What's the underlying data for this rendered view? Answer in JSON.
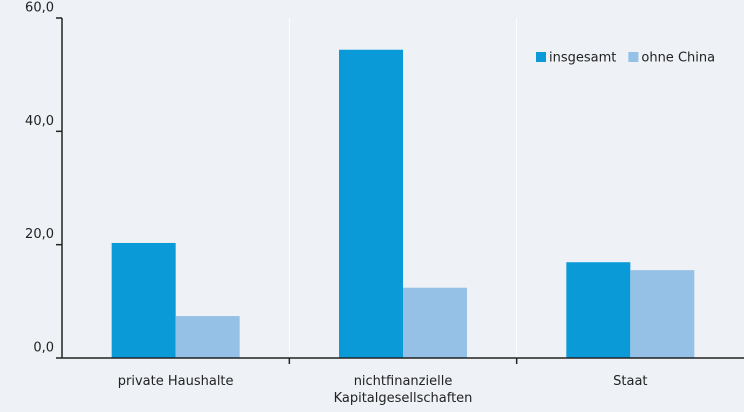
{
  "chart_data": {
    "type": "bar",
    "categories": [
      "private Haushalte",
      "nichtfinanzielle Kapitalgesellschaften",
      "Staat"
    ],
    "series": [
      {
        "name": "insgesamt",
        "color": "#0a9ad8",
        "values": [
          20.3,
          54.4,
          16.9
        ]
      },
      {
        "name": "ohne China",
        "color": "#95c1e6",
        "values": [
          7.4,
          12.4,
          15.5
        ]
      }
    ],
    "ylim": [
      0,
      60
    ],
    "yticks": [
      {
        "value": 0,
        "label": "0,0"
      },
      {
        "value": 20,
        "label": "20,0"
      },
      {
        "value": 40,
        "label": "40,0"
      },
      {
        "value": 60,
        "label": "60,0"
      }
    ],
    "legend": "top-right"
  }
}
